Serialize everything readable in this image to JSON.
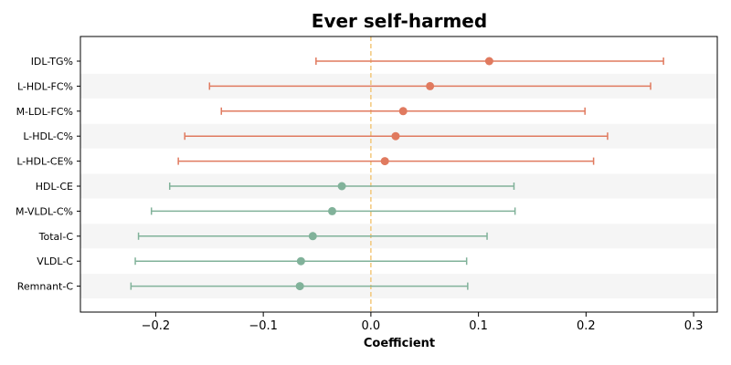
{
  "chart_data": {
    "type": "forest",
    "title": "Ever self-harmed",
    "xlabel": "Coefficient",
    "ylabel": "",
    "xlim": [
      -0.27,
      0.322
    ],
    "xticks": [
      -0.2,
      -0.1,
      0.0,
      0.1,
      0.2,
      0.3
    ],
    "xtick_labels": [
      "−0.2",
      "−0.1",
      "0.0",
      "0.1",
      "0.2",
      "0.3"
    ],
    "reference_line": 0.0,
    "reference_color": "#f2c77a",
    "row_band_color": "#f5f5f5",
    "series": [
      {
        "name": "positive",
        "color": "#e07a5f"
      },
      {
        "name": "negative",
        "color": "#81b29a"
      }
    ],
    "points": [
      {
        "label": "IDL-TG%",
        "estimate": 0.11,
        "lower": -0.051,
        "upper": 0.272,
        "series": "positive"
      },
      {
        "label": "L-HDL-FC%",
        "estimate": 0.055,
        "lower": -0.15,
        "upper": 0.26,
        "series": "positive"
      },
      {
        "label": "M-LDL-FC%",
        "estimate": 0.03,
        "lower": -0.139,
        "upper": 0.199,
        "series": "positive"
      },
      {
        "label": "L-HDL-C%",
        "estimate": 0.023,
        "lower": -0.173,
        "upper": 0.22,
        "series": "positive"
      },
      {
        "label": "L-HDL-CE%",
        "estimate": 0.013,
        "lower": -0.179,
        "upper": 0.207,
        "series": "positive"
      },
      {
        "label": "HDL-CE",
        "estimate": -0.027,
        "lower": -0.187,
        "upper": 0.133,
        "series": "negative"
      },
      {
        "label": "M-VLDL-C%",
        "estimate": -0.036,
        "lower": -0.204,
        "upper": 0.134,
        "series": "negative"
      },
      {
        "label": "Total-C",
        "estimate": -0.054,
        "lower": -0.216,
        "upper": 0.108,
        "series": "negative"
      },
      {
        "label": "VLDL-C",
        "estimate": -0.065,
        "lower": -0.219,
        "upper": 0.089,
        "series": "negative"
      },
      {
        "label": "Remnant-C",
        "estimate": -0.066,
        "lower": -0.223,
        "upper": 0.09,
        "series": "negative"
      }
    ]
  }
}
